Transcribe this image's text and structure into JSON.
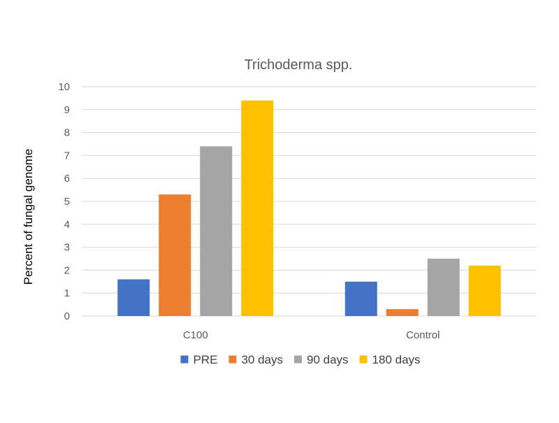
{
  "chart_data": {
    "type": "bar",
    "title": "Trichoderma spp.",
    "xlabel": "",
    "ylabel": "Percent of fungal genome",
    "categories": [
      "C100",
      "Control"
    ],
    "ylim": [
      0,
      10
    ],
    "yticks": [
      "0",
      "1",
      "2",
      "3",
      "4",
      "5",
      "6",
      "7",
      "8",
      "9",
      "10"
    ],
    "grid": true,
    "legend_position": "bottom",
    "series": [
      {
        "name": "PRE",
        "color": "#4472C4",
        "values": [
          1.6,
          1.5
        ]
      },
      {
        "name": "30 days",
        "color": "#ED7D31",
        "values": [
          5.3,
          0.3
        ]
      },
      {
        "name": "90 days",
        "color": "#A5A5A5",
        "values": [
          7.4,
          2.5
        ]
      },
      {
        "name": "180 days",
        "color": "#FFC000",
        "values": [
          9.4,
          2.2
        ]
      }
    ]
  }
}
